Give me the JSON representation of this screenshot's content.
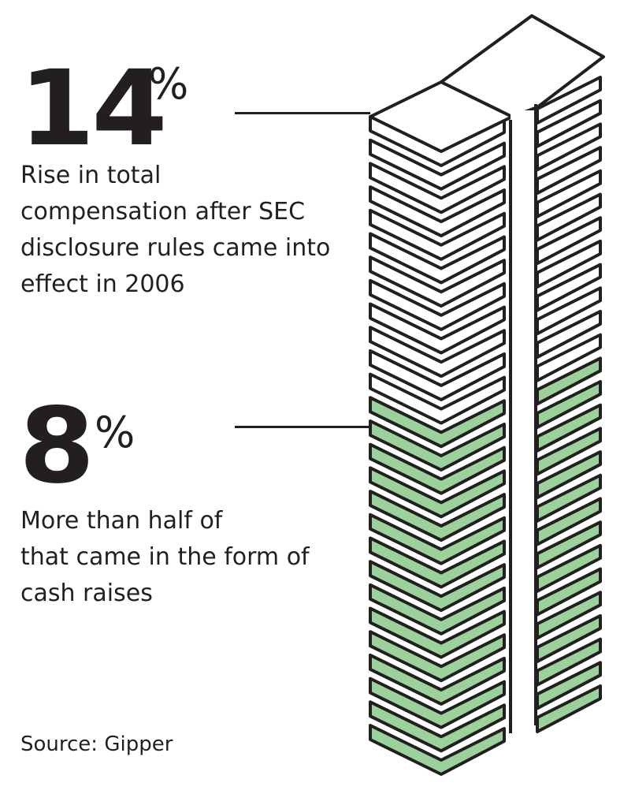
{
  "stats": [
    {
      "value": "14",
      "unit": "%",
      "description_lines": [
        "Rise in total",
        "compensation after SEC",
        "disclosure rules came into",
        "effect in 2006"
      ]
    },
    {
      "value": "8",
      "unit": "%",
      "description_lines": [
        "More than half of",
        "that came in the form of",
        "cash raises"
      ]
    }
  ],
  "source": "Source: Gipper",
  "colors": {
    "ink": "#231f20",
    "cash": "#9bd19a",
    "paper": "#ffffff"
  },
  "chart_data": {
    "type": "bar",
    "style": "stacked-bills-pictograph",
    "categories": [
      "Total compensation rise",
      "Cash raises"
    ],
    "values": [
      14,
      8
    ],
    "unit": "%",
    "title": "",
    "xlabel": "",
    "ylabel": ""
  }
}
